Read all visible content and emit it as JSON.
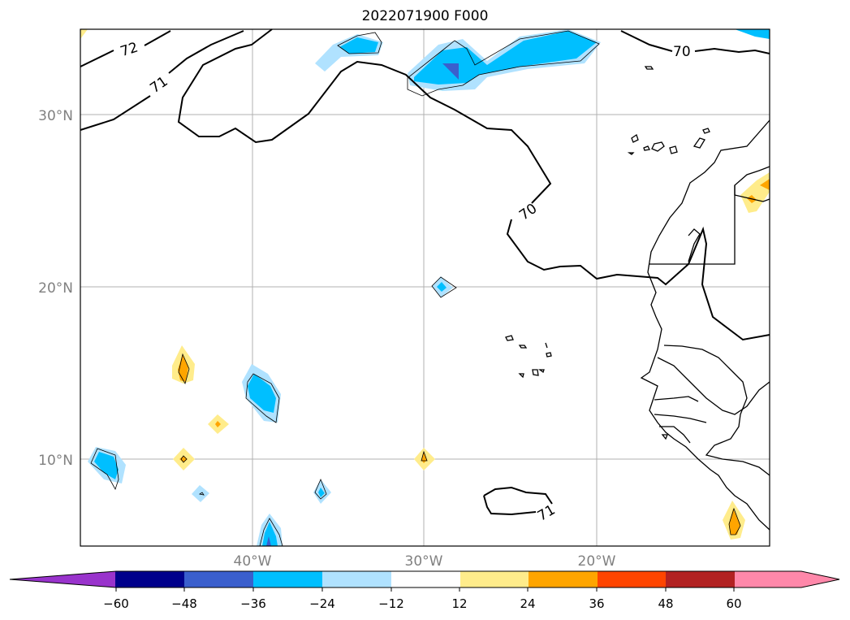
{
  "title": "2022071900 F000",
  "map": {
    "lat_labels": [
      "30°N",
      "20°N",
      "10°N"
    ],
    "lon_labels": [
      "40°W",
      "30°W",
      "20°W"
    ],
    "contour_labels": [
      "72",
      "71",
      "70",
      "70",
      "71"
    ]
  },
  "colorbar": {
    "ticks": [
      "−60",
      "−48",
      "−36",
      "−24",
      "−12",
      "12",
      "24",
      "36",
      "48",
      "60"
    ],
    "colors": [
      "#9933cc",
      "#00008b",
      "#3a5fcd",
      "#00bfff",
      "#b0e2ff",
      "#ffffff",
      "#ffec8b",
      "#ffa500",
      "#ff4500",
      "#b22222",
      "#ff88aa"
    ]
  }
}
